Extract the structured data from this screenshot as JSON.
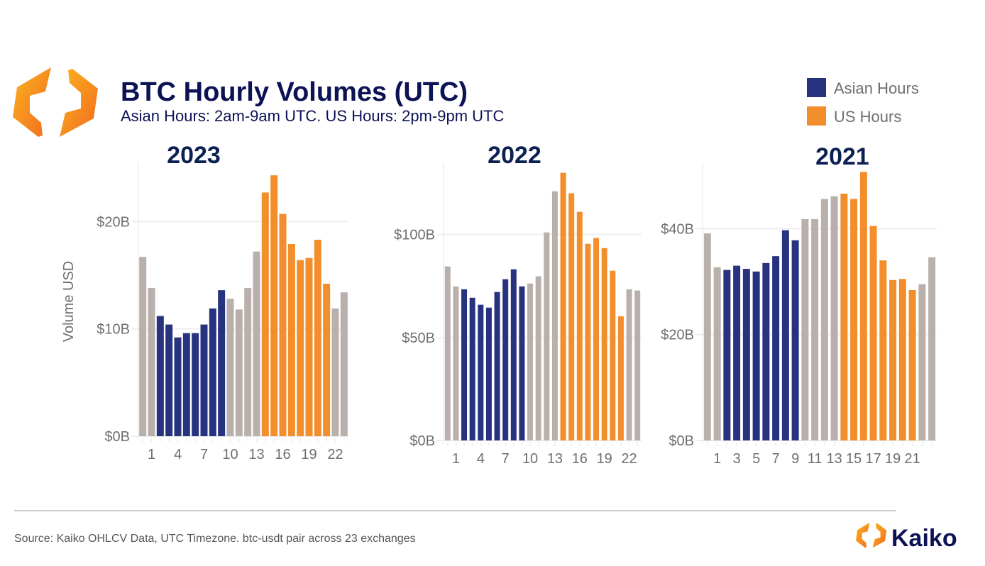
{
  "header": {
    "title": "BTC Hourly Volumes (UTC)",
    "subtitle": "Asian Hours: 2am-9am UTC. US Hours: 2pm-9pm UTC"
  },
  "legend": [
    {
      "label": "Asian Hours",
      "color": "#283380"
    },
    {
      "label": "US Hours",
      "color": "#f28f2c"
    }
  ],
  "colors": {
    "other": "#b9b0ab",
    "asian": "#283380",
    "us": "#f28f2c",
    "title": "#0d1254"
  },
  "footer": {
    "source": "Source: Kaiko OHLCV Data, UTC Timezone. btc-usdt pair across 23 exchanges",
    "brand": "Kaiko"
  },
  "chart_data": [
    {
      "type": "bar",
      "title": "2023",
      "ylabel": "Volume USD",
      "xlabel": "",
      "x": [
        0,
        1,
        2,
        3,
        4,
        5,
        6,
        7,
        8,
        9,
        10,
        11,
        12,
        13,
        14,
        15,
        16,
        17,
        18,
        19,
        20,
        21,
        22,
        23
      ],
      "xtick_labels": [
        "1",
        "4",
        "7",
        "10",
        "13",
        "16",
        "19",
        "22"
      ],
      "ytick_labels": [
        "$0B",
        "$10B",
        "$20B"
      ],
      "ytick_values": [
        0,
        10,
        20
      ],
      "ylim": [
        0,
        25.5
      ],
      "unit": "USD billions",
      "values": [
        16.7,
        13.8,
        11.2,
        10.4,
        9.2,
        9.6,
        9.6,
        10.4,
        11.9,
        13.6,
        12.8,
        11.8,
        13.8,
        17.2,
        22.7,
        24.3,
        20.7,
        17.9,
        16.4,
        16.6,
        18.3,
        14.2,
        11.9,
        13.4
      ],
      "categories_by_index": [
        "other",
        "other",
        "asian",
        "asian",
        "asian",
        "asian",
        "asian",
        "asian",
        "asian",
        "asian",
        "other",
        "other",
        "other",
        "other",
        "us",
        "us",
        "us",
        "us",
        "us",
        "us",
        "us",
        "us",
        "other",
        "other"
      ]
    },
    {
      "type": "bar",
      "title": "2022",
      "x": [
        0,
        1,
        2,
        3,
        4,
        5,
        6,
        7,
        8,
        9,
        10,
        11,
        12,
        13,
        14,
        15,
        16,
        17,
        18,
        19,
        20,
        21,
        22,
        23
      ],
      "xtick_labels": [
        "1",
        "4",
        "7",
        "10",
        "13",
        "16",
        "19",
        "22"
      ],
      "ytick_labels": [
        "$0B",
        "$50B",
        "$100B"
      ],
      "ytick_values": [
        0,
        50,
        100
      ],
      "ylim": [
        0,
        135
      ],
      "unit": "USD billions",
      "values": [
        84.5,
        74.8,
        73.4,
        69.3,
        65.9,
        64.5,
        72.1,
        78.3,
        83.1,
        74.8,
        76.2,
        79.7,
        101,
        121,
        130,
        120,
        111,
        95.5,
        98.3,
        93.4,
        82.4,
        60.3,
        73.4,
        72.8
      ],
      "categories_by_index": [
        "other",
        "other",
        "asian",
        "asian",
        "asian",
        "asian",
        "asian",
        "asian",
        "asian",
        "asian",
        "other",
        "other",
        "other",
        "other",
        "us",
        "us",
        "us",
        "us",
        "us",
        "us",
        "us",
        "us",
        "other",
        "other"
      ]
    },
    {
      "type": "bar",
      "title": "2021",
      "x": [
        0,
        1,
        2,
        3,
        4,
        5,
        6,
        7,
        8,
        9,
        10,
        11,
        12,
        13,
        14,
        15,
        16,
        17,
        18,
        19,
        20,
        21,
        22,
        23
      ],
      "xtick_labels": [
        "1",
        "3",
        "5",
        "7",
        "9",
        "11",
        "13",
        "15",
        "17",
        "19",
        "21"
      ],
      "ytick_labels": [
        "$0B",
        "$20B",
        "$40B"
      ],
      "ytick_values": [
        0,
        20,
        40
      ],
      "ylim": [
        0,
        52.5
      ],
      "unit": "USD billions",
      "values": [
        39.1,
        32.7,
        32.2,
        33.0,
        32.4,
        31.9,
        33.5,
        34.8,
        39.7,
        37.8,
        41.8,
        41.8,
        45.6,
        46.1,
        46.6,
        45.6,
        50.7,
        40.5,
        34.0,
        30.3,
        30.5,
        28.4,
        29.5,
        34.6
      ],
      "categories_by_index": [
        "other",
        "other",
        "asian",
        "asian",
        "asian",
        "asian",
        "asian",
        "asian",
        "asian",
        "asian",
        "other",
        "other",
        "other",
        "other",
        "us",
        "us",
        "us",
        "us",
        "us",
        "us",
        "us",
        "us",
        "other",
        "other"
      ]
    }
  ]
}
